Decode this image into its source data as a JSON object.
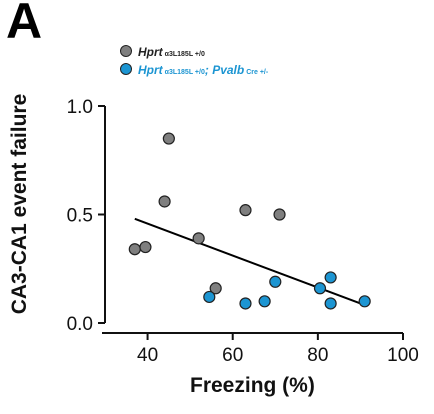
{
  "panel_label": "A",
  "legend": [
    {
      "name": "Hprt",
      "superscript": "α3L185L +/0",
      "color": "#7f7f7f"
    },
    {
      "name": "Hprt",
      "superscript": "α3L185L +/0",
      "name2": "Pvalb",
      "superscript2": "Cre +/-",
      "color": "#1c95d2"
    }
  ],
  "chart_data": {
    "type": "scatter",
    "xlabel": "Freezing (%)",
    "ylabel": "CA3-CA1 event failure",
    "xlim": [
      30,
      100
    ],
    "ylim": [
      0,
      1.0
    ],
    "xticks": [
      40,
      60,
      80,
      100
    ],
    "yticks": [
      0.0,
      0.5,
      1.0
    ],
    "ytick_labels": [
      "0.0",
      "0.5",
      "1.0"
    ],
    "grid": false,
    "legend_position": "top-left",
    "series": [
      {
        "name": "Hprt α3L185L +/0",
        "color": "#7f7f7f",
        "points": [
          [
            37,
            0.34
          ],
          [
            39.5,
            0.35
          ],
          [
            44,
            0.56
          ],
          [
            45,
            0.85
          ],
          [
            52,
            0.39
          ],
          [
            56,
            0.16
          ],
          [
            63,
            0.52
          ],
          [
            71,
            0.5
          ]
        ]
      },
      {
        "name": "Hprt α3L185L +/0; Pvalb Cre +/-",
        "color": "#1c95d2",
        "points": [
          [
            54.5,
            0.12
          ],
          [
            63,
            0.09
          ],
          [
            67.5,
            0.1
          ],
          [
            70,
            0.19
          ],
          [
            80.5,
            0.16
          ],
          [
            83,
            0.21
          ],
          [
            83,
            0.09
          ],
          [
            91,
            0.1
          ]
        ]
      }
    ],
    "regression_line": {
      "x": [
        37,
        90
      ],
      "y": [
        0.48,
        0.09
      ],
      "color": "#000000"
    }
  }
}
